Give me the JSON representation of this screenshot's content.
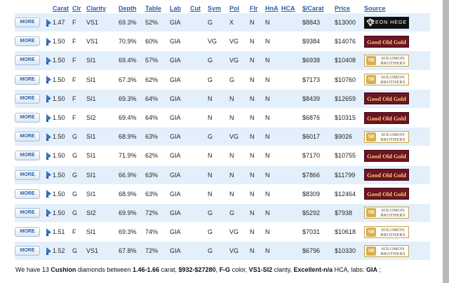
{
  "columns": {
    "carat": "Carat",
    "clr": "Clr",
    "clarity": "Clarity",
    "depth": "Depth",
    "table": "Table",
    "lab": "Lab",
    "cut": "Cut",
    "sym": "Sym",
    "pol": "Pol",
    "flr": "Flr",
    "hna": "HnA",
    "hca": "HCA",
    "per_carat": "$/Carat",
    "price": "Price",
    "source": "Source"
  },
  "more_label": "MORE",
  "rows": [
    {
      "carat": "1.47",
      "clr": "F",
      "clarity": "VS1",
      "depth": "69.3%",
      "table": "52%",
      "lab": "GIA",
      "cut": "",
      "sym": "G",
      "pol": "X",
      "flr": "N",
      "hna": "N",
      "hca": "",
      "per_carat": "$8843",
      "price": "$13000",
      "source": "LEON HEGE"
    },
    {
      "carat": "1.50",
      "clr": "F",
      "clarity": "VS1",
      "depth": "70.9%",
      "table": "60%",
      "lab": "GIA",
      "cut": "",
      "sym": "VG",
      "pol": "VG",
      "flr": "N",
      "hna": "N",
      "hca": "",
      "per_carat": "$9384",
      "price": "$14076",
      "source": "Good Old Gold"
    },
    {
      "carat": "1.50",
      "clr": "F",
      "clarity": "SI1",
      "depth": "69.4%",
      "table": "57%",
      "lab": "GIA",
      "cut": "",
      "sym": "G",
      "pol": "VG",
      "flr": "N",
      "hna": "N",
      "hca": "",
      "per_carat": "$6938",
      "price": "$10408",
      "source": "SOLOMON BROTHERS"
    },
    {
      "carat": "1.50",
      "clr": "F",
      "clarity": "SI1",
      "depth": "67.3%",
      "table": "62%",
      "lab": "GIA",
      "cut": "",
      "sym": "G",
      "pol": "G",
      "flr": "N",
      "hna": "N",
      "hca": "",
      "per_carat": "$7173",
      "price": "$10760",
      "source": "SOLOMON BROTHERS"
    },
    {
      "carat": "1.50",
      "clr": "F",
      "clarity": "SI1",
      "depth": "69.3%",
      "table": "64%",
      "lab": "GIA",
      "cut": "",
      "sym": "N",
      "pol": "N",
      "flr": "N",
      "hna": "N",
      "hca": "",
      "per_carat": "$8439",
      "price": "$12659",
      "source": "Good Old Gold"
    },
    {
      "carat": "1.50",
      "clr": "F",
      "clarity": "SI2",
      "depth": "69.4%",
      "table": "64%",
      "lab": "GIA",
      "cut": "",
      "sym": "N",
      "pol": "N",
      "flr": "N",
      "hna": "N",
      "hca": "",
      "per_carat": "$6876",
      "price": "$10315",
      "source": "Good Old Gold"
    },
    {
      "carat": "1.50",
      "clr": "G",
      "clarity": "SI1",
      "depth": "68.9%",
      "table": "63%",
      "lab": "GIA",
      "cut": "",
      "sym": "G",
      "pol": "VG",
      "flr": "N",
      "hna": "N",
      "hca": "",
      "per_carat": "$6017",
      "price": "$9026",
      "source": "SOLOMON BROTHERS"
    },
    {
      "carat": "1.50",
      "clr": "G",
      "clarity": "SI1",
      "depth": "71.9%",
      "table": "62%",
      "lab": "GIA",
      "cut": "",
      "sym": "N",
      "pol": "N",
      "flr": "N",
      "hna": "N",
      "hca": "",
      "per_carat": "$7170",
      "price": "$10755",
      "source": "Good Old Gold"
    },
    {
      "carat": "1.50",
      "clr": "G",
      "clarity": "SI1",
      "depth": "66.9%",
      "table": "63%",
      "lab": "GIA",
      "cut": "",
      "sym": "N",
      "pol": "N",
      "flr": "N",
      "hna": "N",
      "hca": "",
      "per_carat": "$7866",
      "price": "$11799",
      "source": "Good Old Gold"
    },
    {
      "carat": "1.50",
      "clr": "G",
      "clarity": "SI1",
      "depth": "68.9%",
      "table": "63%",
      "lab": "GIA",
      "cut": "",
      "sym": "N",
      "pol": "N",
      "flr": "N",
      "hna": "N",
      "hca": "",
      "per_carat": "$8309",
      "price": "$12464",
      "source": "Good Old Gold"
    },
    {
      "carat": "1.50",
      "clr": "G",
      "clarity": "SI2",
      "depth": "69.9%",
      "table": "72%",
      "lab": "GIA",
      "cut": "",
      "sym": "G",
      "pol": "G",
      "flr": "N",
      "hna": "N",
      "hca": "",
      "per_carat": "$5292",
      "price": "$7938",
      "source": "SOLOMON BROTHERS"
    },
    {
      "carat": "1.51",
      "clr": "F",
      "clarity": "SI1",
      "depth": "69.3%",
      "table": "74%",
      "lab": "GIA",
      "cut": "",
      "sym": "G",
      "pol": "VG",
      "flr": "N",
      "hna": "N",
      "hca": "",
      "per_carat": "$7031",
      "price": "$10618",
      "source": "SOLOMON BROTHERS"
    },
    {
      "carat": "1.52",
      "clr": "G",
      "clarity": "VS1",
      "depth": "67.8%",
      "table": "72%",
      "lab": "GIA",
      "cut": "",
      "sym": "G",
      "pol": "VG",
      "flr": "N",
      "hna": "N",
      "hca": "",
      "per_carat": "$6796",
      "price": "$10330",
      "source": "SOLOMON BROTHERS"
    }
  ],
  "summary": {
    "prefix": "We have 13 ",
    "shape": "Cushion",
    "mid1": " diamonds between ",
    "carat_range": "1.46-1.66",
    "mid2": " carat, ",
    "price_range": "$932-$27280",
    "mid3": ", ",
    "color_range": "F-G",
    "mid4": " color, ",
    "clarity_range": "VS1-SI2",
    "mid5": " clarity, ",
    "hca_range": "Excellent-n/a",
    "mid6": " HCA, labs: ",
    "labs": "GIA",
    "suffix": " ;"
  },
  "colors": {
    "header_link": "#2a5fa8",
    "row_alt": "#e3f0fb",
    "gog_bg": "#6e1425",
    "gog_text": "#f2d06b",
    "sb_gold": "#d6b04c"
  }
}
